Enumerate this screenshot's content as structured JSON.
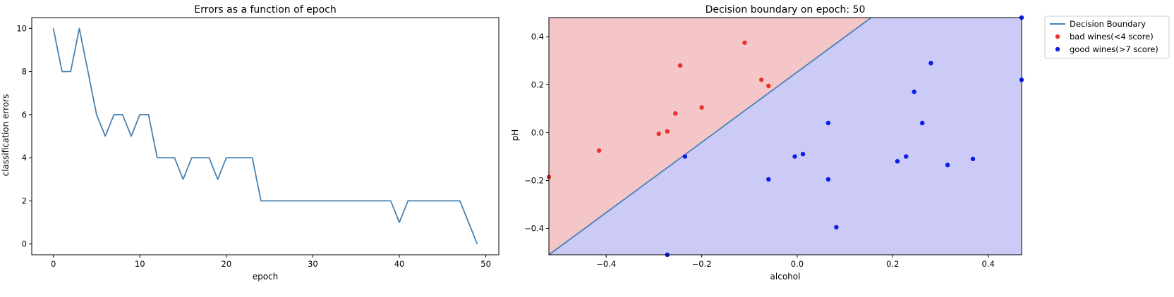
{
  "chart_data": [
    {
      "type": "line",
      "title": "Errors as a function of epoch",
      "xlabel": "epoch",
      "ylabel": "classification errors",
      "xlim": [
        -2.5,
        51.5
      ],
      "ylim": [
        -0.5,
        10.5
      ],
      "xticks": [
        0,
        10,
        20,
        30,
        40,
        50
      ],
      "yticks": [
        0,
        2,
        4,
        6,
        8,
        10
      ],
      "grid": false,
      "series": [
        {
          "color": "#4682b4",
          "x": [
            0,
            1,
            2,
            3,
            4,
            5,
            6,
            7,
            8,
            9,
            10,
            11,
            12,
            13,
            14,
            15,
            16,
            17,
            18,
            19,
            20,
            21,
            22,
            23,
            24,
            25,
            26,
            27,
            28,
            29,
            30,
            31,
            32,
            33,
            34,
            35,
            36,
            37,
            38,
            39,
            40,
            41,
            42,
            43,
            44,
            45,
            46,
            47,
            48,
            49
          ],
          "values": [
            10,
            8,
            8,
            10,
            8,
            6,
            5,
            6,
            6,
            5,
            6,
            6,
            4,
            4,
            4,
            3,
            4,
            4,
            4,
            3,
            4,
            4,
            4,
            4,
            2,
            2,
            2,
            2,
            2,
            2,
            2,
            2,
            2,
            2,
            2,
            2,
            2,
            2,
            2,
            2,
            1,
            2,
            2,
            2,
            2,
            2,
            2,
            2,
            1,
            0
          ]
        }
      ]
    },
    {
      "type": "scatter",
      "title": "Decision boundary on epoch: 50",
      "xlabel": "alcohol",
      "ylabel": "pH",
      "xlim": [
        -0.52,
        0.47
      ],
      "ylim": [
        -0.51,
        0.48
      ],
      "xticks": [
        -0.4,
        -0.2,
        0.0,
        0.2,
        0.4
      ],
      "xtick_labels": [
        "−0.4",
        "−0.2",
        "0.0",
        "0.2",
        "0.4"
      ],
      "yticks": [
        -0.4,
        -0.2,
        0.0,
        0.2,
        0.4
      ],
      "ytick_labels": [
        "−0.4",
        "−0.2",
        "0.0",
        "0.2",
        "0.4"
      ],
      "grid": false,
      "legend_position": "outside-top-right",
      "boundary": {
        "name": "Decision Boundary",
        "color": "#4682b4",
        "points": [
          [
            -0.52,
            -0.51
          ],
          [
            0.155,
            0.48
          ]
        ]
      },
      "regions": {
        "above_color": "#f5c6c8",
        "below_color": "#cccbf8"
      },
      "series": [
        {
          "name": "bad wines(<4 score)",
          "color": "#e8342a",
          "points": [
            [
              -0.52,
              -0.185
            ],
            [
              -0.415,
              -0.075
            ],
            [
              -0.29,
              -0.005
            ],
            [
              -0.272,
              0.005
            ],
            [
              -0.255,
              0.08
            ],
            [
              -0.245,
              0.28
            ],
            [
              -0.2,
              0.105
            ],
            [
              -0.11,
              0.375
            ],
            [
              -0.075,
              0.22
            ],
            [
              -0.06,
              0.195
            ]
          ]
        },
        {
          "name": "good wines(>7 score)",
          "color": "#0a1ee8",
          "points": [
            [
              -0.235,
              -0.1
            ],
            [
              -0.272,
              -0.51
            ],
            [
              -0.06,
              -0.195
            ],
            [
              -0.005,
              -0.1
            ],
            [
              0.012,
              -0.09
            ],
            [
              0.065,
              0.04
            ],
            [
              0.065,
              -0.195
            ],
            [
              0.082,
              -0.395
            ],
            [
              0.21,
              -0.12
            ],
            [
              0.228,
              -0.1
            ],
            [
              0.245,
              0.17
            ],
            [
              0.262,
              0.04
            ],
            [
              0.28,
              0.29
            ],
            [
              0.315,
              -0.135
            ],
            [
              0.368,
              -0.11
            ],
            [
              0.47,
              0.48
            ],
            [
              0.47,
              0.22
            ]
          ]
        }
      ]
    }
  ]
}
